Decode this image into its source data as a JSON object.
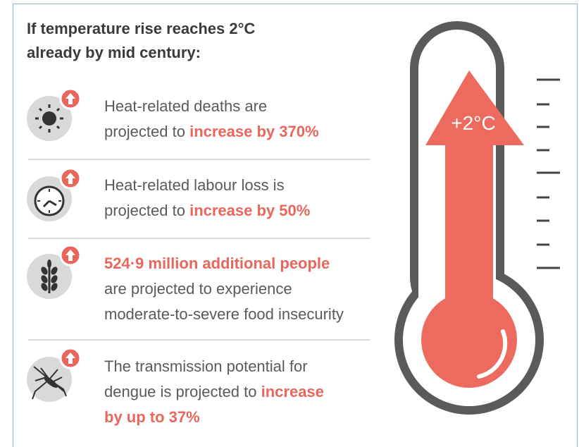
{
  "title": [
    "If temperature rise reaches 2°C",
    "already by mid century:"
  ],
  "items": [
    {
      "lines": [
        [
          {
            "text": "Heat-related deaths are"
          }
        ],
        [
          {
            "text": "projected to "
          },
          {
            "text": "increase by 370%",
            "highlight": true
          }
        ]
      ]
    },
    {
      "lines": [
        [
          {
            "text": "Heat-related labour loss is"
          }
        ],
        [
          {
            "text": "projected to "
          },
          {
            "text": "increase by 50%",
            "highlight": true
          }
        ]
      ]
    },
    {
      "lines": [
        [
          {
            "text": "524·9 million additional people",
            "highlight": true
          }
        ],
        [
          {
            "text": "are projected to experience"
          }
        ],
        [
          {
            "text": "moderate-to-severe food insecurity"
          }
        ]
      ]
    },
    {
      "lines": [
        [
          {
            "text": "The transmission potential for"
          }
        ],
        [
          {
            "text": "dengue is projected to "
          },
          {
            "text": "increase",
            "highlight": true
          }
        ],
        [
          {
            "text": "by up to 37%",
            "highlight": true
          }
        ]
      ]
    }
  ],
  "thermometer": {
    "label": "+2°C"
  }
}
